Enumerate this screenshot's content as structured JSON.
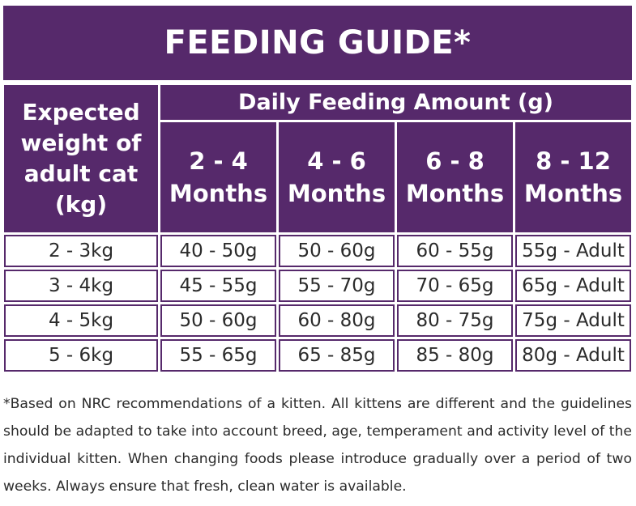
{
  "title": "FEEDING GUIDE*",
  "table": {
    "weight_header": [
      "Expected",
      "weight of",
      "adult cat",
      "(kg)"
    ],
    "amount_header": "Daily Feeding Amount (g)",
    "age_columns": [
      {
        "range": "2 - 4",
        "unit": "Months"
      },
      {
        "range": "4 - 6",
        "unit": "Months"
      },
      {
        "range": "6 - 8",
        "unit": "Months"
      },
      {
        "range": "8 - 12",
        "unit": "Months"
      }
    ],
    "rows": [
      {
        "weight": "2 - 3kg",
        "amounts": [
          "40 - 50g",
          "50 - 60g",
          "60 - 55g",
          "55g - Adult"
        ]
      },
      {
        "weight": "3 - 4kg",
        "amounts": [
          "45 - 55g",
          "55 - 70g",
          "70 - 65g",
          "65g - Adult"
        ]
      },
      {
        "weight": "4 - 5kg",
        "amounts": [
          "50 - 60g",
          "60 - 80g",
          "80 - 75g",
          "75g - Adult"
        ]
      },
      {
        "weight": "5 - 6kg",
        "amounts": [
          "55 - 65g",
          "65 - 85g",
          "85 - 80g",
          "80g - Adult"
        ]
      }
    ]
  },
  "footnote": "*Based on NRC recommendations of a kitten. All kittens are different and the guidelines should be adapted to take into account breed, age, temperament and activity level of the individual kitten. When changing foods please introduce gradually over a period of two weeks. Always ensure that fresh, clean water is available.",
  "colors": {
    "header_purple": "#56296b",
    "header_text": "#ffffff",
    "body_text": "#2b2b2b"
  }
}
